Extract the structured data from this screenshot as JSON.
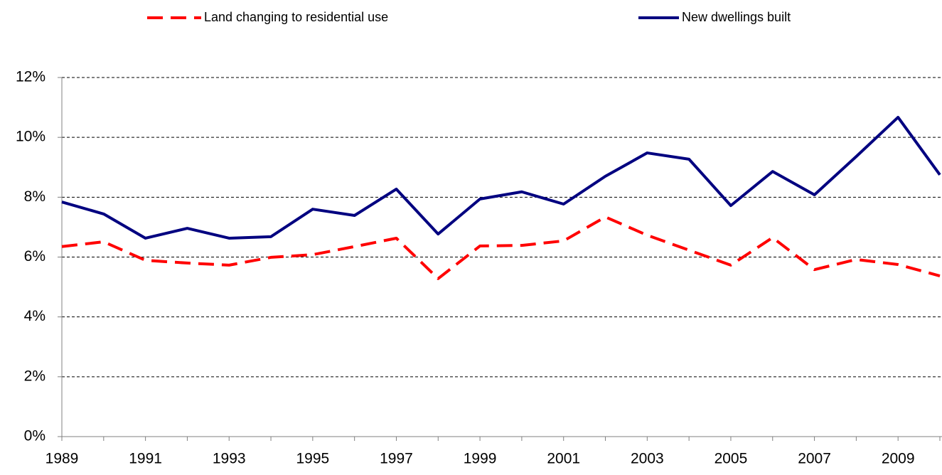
{
  "chart_data": {
    "type": "line",
    "x": [
      1989,
      1990,
      1991,
      1992,
      1993,
      1994,
      1995,
      1996,
      1997,
      1998,
      1999,
      2000,
      2001,
      2002,
      2003,
      2004,
      2005,
      2006,
      2007,
      2008,
      2009,
      2010
    ],
    "xlim": [
      1989,
      2010
    ],
    "xticks": [
      1989,
      1991,
      1993,
      1995,
      1997,
      1999,
      2001,
      2003,
      2005,
      2007,
      2009
    ],
    "ylim": [
      0,
      12
    ],
    "yticks": [
      {
        "value": 0,
        "label": "0%"
      },
      {
        "value": 2,
        "label": "2%"
      },
      {
        "value": 4,
        "label": "4%"
      },
      {
        "value": 6,
        "label": "6%"
      },
      {
        "value": 8,
        "label": "8%"
      },
      {
        "value": 10,
        "label": "10%"
      },
      {
        "value": 12,
        "label": "12%"
      }
    ],
    "grid": true,
    "legend": "top",
    "series": [
      {
        "name": "Land changing to residential use",
        "color": "#ff0000",
        "dashed": true,
        "values": [
          6.35,
          6.51,
          5.89,
          5.8,
          5.73,
          5.99,
          6.08,
          6.35,
          6.63,
          5.28,
          6.37,
          6.39,
          6.54,
          7.34,
          6.73,
          6.23,
          5.73,
          6.65,
          5.58,
          5.92,
          5.75,
          5.37
        ]
      },
      {
        "name": "New dwellings built",
        "color": "#000080",
        "dashed": false,
        "values": [
          7.84,
          7.44,
          6.63,
          6.96,
          6.63,
          6.68,
          7.6,
          7.39,
          8.27,
          6.77,
          7.94,
          8.18,
          7.77,
          8.7,
          9.48,
          9.27,
          7.72,
          8.86,
          8.08,
          9.36,
          10.67,
          8.75
        ]
      }
    ]
  }
}
